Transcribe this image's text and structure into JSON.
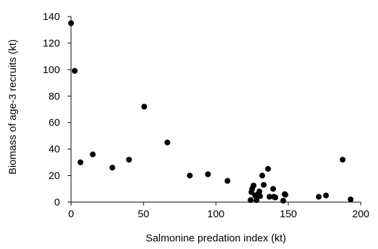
{
  "chart_data": {
    "type": "scatter",
    "title": "",
    "xlabel": "Salmonine predation index (kt)",
    "ylabel": "Biomass of age-3 recruits (kt)",
    "xlim": [
      0,
      200
    ],
    "ylim": [
      0,
      140
    ],
    "x_ticks": [
      0,
      50,
      100,
      150,
      200
    ],
    "y_ticks": [
      0,
      20,
      40,
      60,
      80,
      100,
      120,
      140
    ],
    "x_tick_labels": [
      "0",
      "50",
      "100",
      "150",
      "200"
    ],
    "y_tick_labels": [
      "0",
      "20",
      "40",
      "60",
      "80",
      "100",
      "120",
      "140"
    ],
    "grid": false,
    "legend": "none",
    "marker_color": "#000000",
    "points": [
      {
        "x": 0,
        "y": 135
      },
      {
        "x": 2.5,
        "y": 99
      },
      {
        "x": 6.5,
        "y": 30
      },
      {
        "x": 15,
        "y": 36
      },
      {
        "x": 28.5,
        "y": 26
      },
      {
        "x": 40,
        "y": 32
      },
      {
        "x": 50.5,
        "y": 72
      },
      {
        "x": 66.5,
        "y": 45
      },
      {
        "x": 82,
        "y": 20
      },
      {
        "x": 94.5,
        "y": 21
      },
      {
        "x": 108,
        "y": 16
      },
      {
        "x": 124,
        "y": 1.5
      },
      {
        "x": 124.5,
        "y": 7.5
      },
      {
        "x": 125,
        "y": 10
      },
      {
        "x": 126,
        "y": 12.5
      },
      {
        "x": 127,
        "y": 5
      },
      {
        "x": 128,
        "y": 1.5
      },
      {
        "x": 129,
        "y": 6
      },
      {
        "x": 130,
        "y": 8
      },
      {
        "x": 130.5,
        "y": 4.5
      },
      {
        "x": 132,
        "y": 20
      },
      {
        "x": 133,
        "y": 13
      },
      {
        "x": 136,
        "y": 25
      },
      {
        "x": 137,
        "y": 4
      },
      {
        "x": 139.5,
        "y": 10
      },
      {
        "x": 140,
        "y": 4
      },
      {
        "x": 141,
        "y": 3.5
      },
      {
        "x": 146.5,
        "y": 1
      },
      {
        "x": 147.5,
        "y": 6
      },
      {
        "x": 148,
        "y": 5.5
      },
      {
        "x": 171,
        "y": 4
      },
      {
        "x": 176,
        "y": 5
      },
      {
        "x": 187.5,
        "y": 32
      },
      {
        "x": 193,
        "y": 2
      }
    ]
  }
}
